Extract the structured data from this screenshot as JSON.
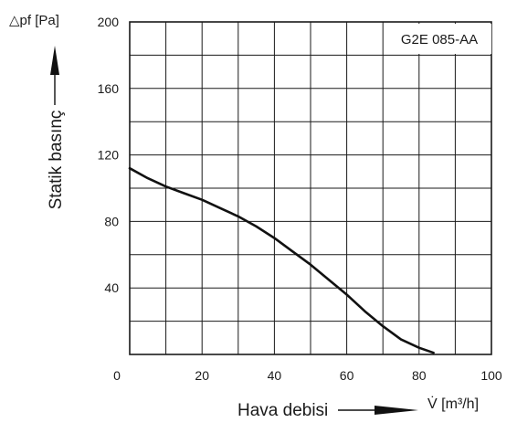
{
  "chart_data": {
    "type": "line",
    "title": "G2E 085-AA",
    "xlabel": "Hava debisi",
    "x_unit": "V̇ [m³/h]",
    "ylabel": "Statik basınç",
    "y_unit": "△pf [Pa]",
    "xlim": [
      0,
      100
    ],
    "ylim": [
      0,
      200
    ],
    "x_ticks": [
      "0",
      "20",
      "40",
      "60",
      "80",
      "100"
    ],
    "y_ticks": [
      "40",
      "80",
      "120",
      "160",
      "200"
    ],
    "grid": true,
    "series": [
      {
        "x": [
          0,
          5,
          10,
          15,
          20,
          25,
          30,
          35,
          40,
          45,
          50,
          55,
          60,
          65,
          70,
          75,
          80,
          84
        ],
        "y": [
          112,
          106,
          101,
          97,
          93,
          88,
          83,
          77,
          70,
          62,
          54,
          45,
          36,
          26,
          17,
          9,
          4,
          1
        ]
      }
    ]
  }
}
